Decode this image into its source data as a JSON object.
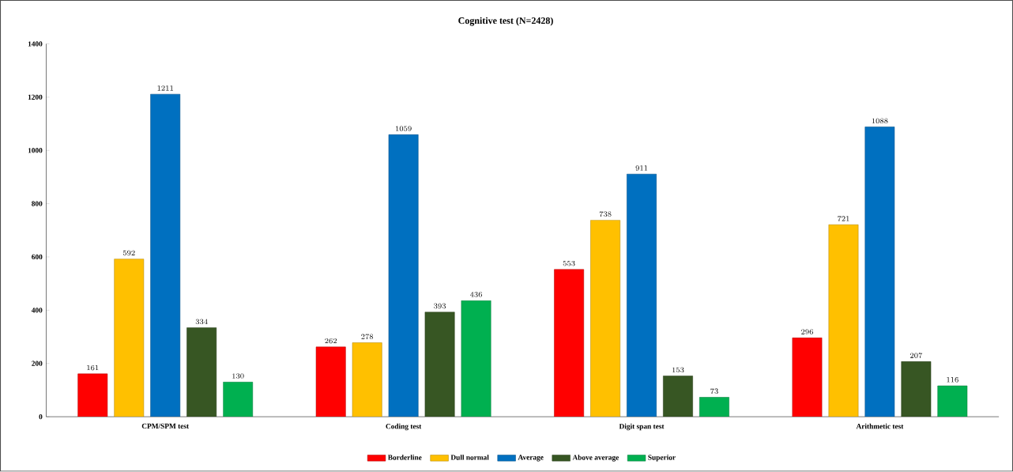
{
  "chart_data": {
    "type": "bar",
    "title": "Cognitive test (N=2428)",
    "categories": [
      "CPM/SPM test",
      "Coding test",
      "Digit span test",
      "Arithmetic test"
    ],
    "series": [
      {
        "name": "Borderline",
        "color": "#ff0000",
        "values": [
          161,
          262,
          553,
          296
        ]
      },
      {
        "name": "Dull normal",
        "color": "#ffc000",
        "values": [
          592,
          278,
          738,
          721
        ]
      },
      {
        "name": "Average",
        "color": "#0070c0",
        "values": [
          1211,
          1059,
          911,
          1088
        ]
      },
      {
        "name": "Above average",
        "color": "#375623",
        "values": [
          334,
          393,
          153,
          207
        ]
      },
      {
        "name": "Superior",
        "color": "#00b050",
        "values": [
          130,
          436,
          73,
          116
        ]
      }
    ],
    "ylim": [
      0,
      1400
    ],
    "yticks": [
      0,
      200,
      400,
      600,
      800,
      1000,
      1200,
      1400
    ],
    "data_labels": true,
    "legend": "bottom",
    "grid": false
  }
}
